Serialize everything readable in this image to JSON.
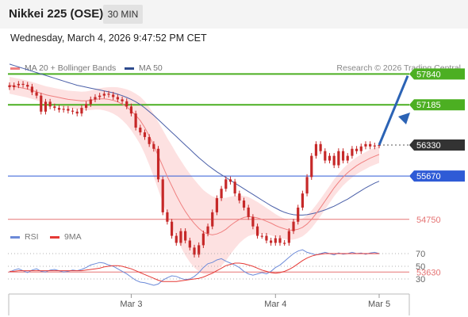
{
  "header": {
    "title": "Nikkei 225 (OSE)",
    "interval": "30 MIN",
    "datetime": "Wednesday, March 4, 2026 9:47:52 PM CET"
  },
  "legend": {
    "ma20": "MA 20 + Bollinger Bands",
    "ma50": "MA 50",
    "rsi": "RSI",
    "ma9": "9MA",
    "credit": "Research © 2026 Trading Central"
  },
  "colors": {
    "candle": "#c62828",
    "ma20": "#f08080",
    "ma50": "#4a5fa8",
    "band": "#fddcdc",
    "resistance": "#4caf22",
    "support": "#e57373",
    "pivot": "#2f5bd6",
    "last": "#333333",
    "rsi": "#6c8ad8",
    "rsi_ma": "#e53935",
    "arrow": "#2b63b5"
  },
  "chart_data": [
    {
      "type": "candlestick",
      "title": "Nikkei 225 (OSE)",
      "x_labels": [
        "Mar 3",
        "Mar 4",
        "Mar 5"
      ],
      "ylim": [
        52700,
        58500
      ],
      "levels": [
        {
          "value": 57840,
          "label": "57840",
          "kind": "resistance"
        },
        {
          "value": 57185,
          "label": "57185",
          "kind": "resistance"
        },
        {
          "value": 56330,
          "label": "56330",
          "kind": "last"
        },
        {
          "value": 55670,
          "label": "55670",
          "kind": "pivot"
        },
        {
          "value": 54750,
          "label": "54750",
          "kind": "support"
        },
        {
          "value": 53630,
          "label": "53630",
          "kind": "support"
        }
      ],
      "close": [
        57560,
        57600,
        57630,
        57610,
        57570,
        57450,
        57380,
        57040,
        57250,
        57150,
        57120,
        57080,
        57100,
        57060,
        57040,
        57000,
        57120,
        57200,
        57300,
        57350,
        57380,
        57420,
        57400,
        57350,
        57300,
        57260,
        57150,
        57000,
        56700,
        56600,
        56500,
        56350,
        56250,
        55600,
        54900,
        54700,
        54400,
        54250,
        54500,
        54300,
        54150,
        54000,
        54200,
        54450,
        54600,
        54900,
        55200,
        55400,
        55600,
        55550,
        55300,
        55150,
        55000,
        54800,
        54600,
        54400,
        54400,
        54300,
        54250,
        54350,
        54250,
        54250,
        54500,
        54700,
        55000,
        55300,
        55650,
        56100,
        56350,
        56200,
        56000,
        56100,
        55900,
        56200,
        56000,
        56100,
        56250,
        56200,
        56300,
        56350,
        56300,
        56320,
        56330
      ],
      "ma20": [
        57600,
        57580,
        57560,
        57540,
        57520,
        57490,
        57460,
        57430,
        57400,
        57380,
        57360,
        57340,
        57320,
        57300,
        57290,
        57280,
        57270,
        57270,
        57280,
        57300,
        57310,
        57310,
        57300,
        57280,
        57250,
        57200,
        57140,
        57060,
        56960,
        56850,
        56700,
        56520,
        56320,
        56100,
        55880,
        55660,
        55460,
        55260,
        55080,
        54920,
        54780,
        54660,
        54560,
        54480,
        54440,
        54420,
        54440,
        54480,
        54540,
        54620,
        54690,
        54750,
        54790,
        54810,
        54800,
        54780,
        54750,
        54710,
        54670,
        54620,
        54580,
        54550,
        54520,
        54520,
        54540,
        54580,
        54650,
        54750,
        54870,
        55000,
        55140,
        55280,
        55420,
        55540,
        55650,
        55740,
        55820,
        55890,
        55950,
        56000,
        56050,
        56090,
        56130
      ],
      "ma50": [
        58050,
        58020,
        57990,
        57960,
        57930,
        57900,
        57870,
        57840,
        57810,
        57780,
        57750,
        57720,
        57690,
        57660,
        57630,
        57600,
        57580,
        57560,
        57540,
        57520,
        57500,
        57480,
        57460,
        57440,
        57410,
        57380,
        57340,
        57300,
        57250,
        57190,
        57120,
        57040,
        56960,
        56870,
        56780,
        56690,
        56600,
        56510,
        56420,
        56330,
        56240,
        56150,
        56060,
        55980,
        55900,
        55830,
        55760,
        55700,
        55640,
        55580,
        55520,
        55460,
        55400,
        55340,
        55280,
        55220,
        55160,
        55100,
        55040,
        54990,
        54940,
        54900,
        54870,
        54850,
        54840,
        54840,
        54850,
        54870,
        54890,
        54920,
        54950,
        54990,
        55030,
        55080,
        55130,
        55180,
        55240,
        55300,
        55360,
        55420,
        55470,
        55520,
        55560
      ]
    },
    {
      "type": "line",
      "title": "RSI",
      "ylim": [
        0,
        100
      ],
      "y_ticks": [
        70,
        50,
        30
      ],
      "series": [
        {
          "name": "RSI",
          "values": [
            41,
            44,
            46,
            43,
            40,
            44,
            46,
            42,
            41,
            44,
            45,
            43,
            41,
            42,
            44,
            43,
            45,
            48,
            52,
            54,
            56,
            55,
            52,
            50,
            46,
            42,
            38,
            33,
            28,
            25,
            24,
            22,
            20,
            22,
            28,
            32,
            35,
            34,
            31,
            29,
            30,
            34,
            40,
            48,
            54,
            56,
            60,
            62,
            58,
            55,
            52,
            48,
            42,
            38,
            36,
            38,
            40,
            38,
            42,
            48,
            52,
            58,
            64,
            70,
            74,
            76,
            72,
            70,
            68,
            70,
            72,
            70,
            68,
            71,
            69,
            70,
            72,
            70,
            71,
            69,
            71,
            72,
            70
          ]
        },
        {
          "name": "9MA",
          "values": [
            42,
            42,
            43,
            43,
            43,
            43,
            43,
            43,
            43,
            43,
            43,
            43,
            43,
            43,
            43,
            43,
            43,
            44,
            45,
            46,
            47,
            49,
            50,
            51,
            51,
            50,
            48,
            46,
            43,
            40,
            37,
            34,
            31,
            28,
            26,
            26,
            26,
            26,
            27,
            28,
            29,
            30,
            31,
            33,
            36,
            39,
            43,
            47,
            51,
            53,
            55,
            55,
            54,
            52,
            50,
            47,
            44,
            42,
            40,
            39,
            40,
            42,
            45,
            49,
            54,
            59,
            63,
            66,
            68,
            69,
            70,
            70,
            70,
            70,
            70,
            70,
            70,
            70,
            70,
            70,
            70,
            70,
            70
          ]
        }
      ]
    }
  ]
}
